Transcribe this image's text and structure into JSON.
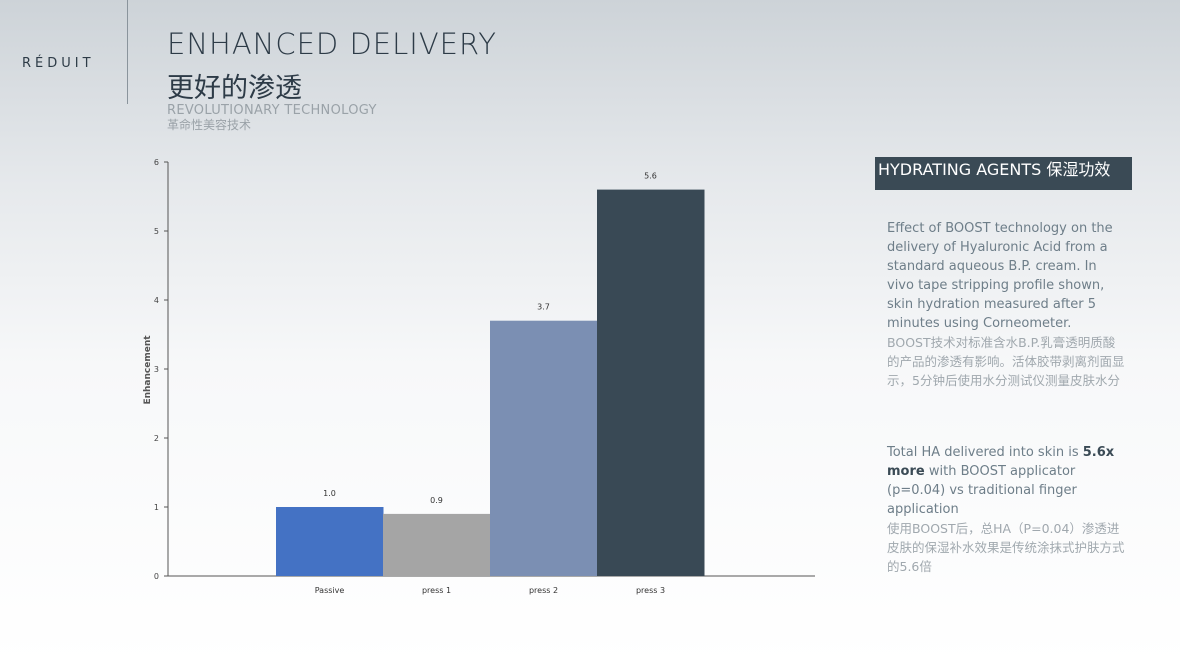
{
  "brand": "RÉDUIT",
  "header": {
    "title_en": "ENHANCED DELIVERY",
    "title_cn": "更好的渗透",
    "subtitle_en": "REVOLUTIONARY TECHNOLOGY",
    "subtitle_cn": "革命性美容技术"
  },
  "panel": {
    "title": "HYDRATING AGENTS 保湿功效",
    "p1_en": "Effect of BOOST technology on the delivery of Hyaluronic Acid from a standard aqueous B.P. cream. In vivo tape stripping profile shown, skin hydration measured after 5 minutes using Corneometer.",
    "p1_cn": "BOOST技术对标准含水B.P.乳膏透明质酸的产品的渗透有影响。活体胶带剥离剂面显示，5分钟后使用水分测试仪测量皮肤水分",
    "p2_en_a": "Total HA delivered into skin is ",
    "p2_en_bold": "5.6x more",
    "p2_en_b": " with BOOST applicator (p=0.04) vs traditional finger application",
    "p2_cn": "使用BOOST后，总HA（P=0.04）渗透进皮肤的保湿补水效果是传统涂抹式护肤方式的5.6倍"
  },
  "chart_data": {
    "type": "bar",
    "categories": [
      "Passive",
      "press 1",
      "press 2",
      "press 3"
    ],
    "values": [
      1.0,
      0.9,
      3.7,
      5.6
    ],
    "value_labels": [
      "1.0",
      "0.9",
      "3.7",
      "5.6"
    ],
    "colors": [
      "#4472c4",
      "#a5a5a5",
      "#7b8fb3",
      "#394955"
    ],
    "ylabel": "Enhancement",
    "ylim": [
      0,
      6
    ],
    "yticks": [
      "0",
      "1",
      "2",
      "3",
      "4",
      "5",
      "6"
    ],
    "grid": false,
    "legend": "none"
  }
}
